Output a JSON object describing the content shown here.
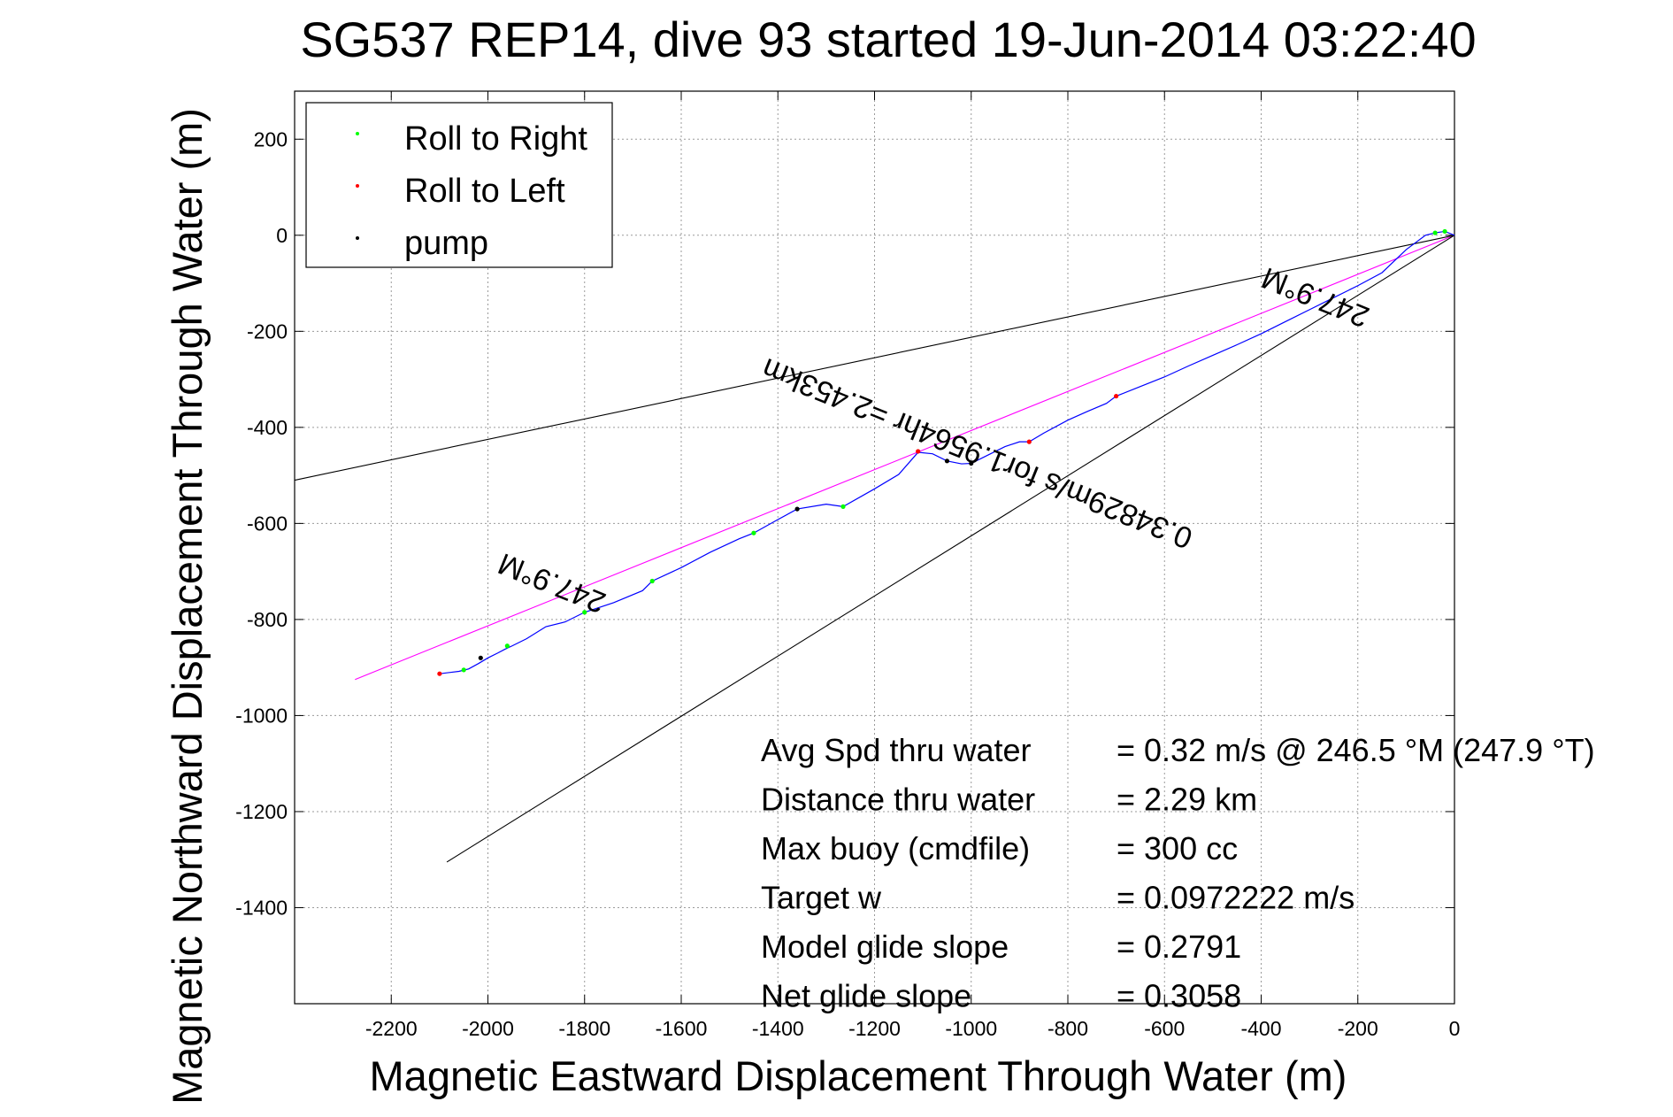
{
  "chart_data": {
    "type": "line",
    "title": "SG537 REP14, dive 93 started 19-Jun-2014 03:22:40",
    "xlabel": "Magnetic Eastward Displacement Through Water (m)",
    "ylabel": "Magnetic Northward Displacement Through Water (m)",
    "xlim": [
      -2400,
      0
    ],
    "ylim": [
      -1600,
      300
    ],
    "xticks": [
      -2200,
      -2000,
      -1800,
      -1600,
      -1400,
      -1200,
      -1000,
      -800,
      -600,
      -400,
      -200,
      0
    ],
    "yticks": [
      200,
      0,
      -200,
      -400,
      -600,
      -800,
      -1000,
      -1200,
      -1400
    ],
    "grid": true,
    "legend": {
      "position": "top-left",
      "entries": [
        {
          "label": "Roll to Right",
          "color": "#00ff00"
        },
        {
          "label": "Roll to Left",
          "color": "#ff0000"
        },
        {
          "label": "pump",
          "color": "#000000"
        }
      ]
    },
    "series": [
      {
        "name": "Roll to Right",
        "color": "#00ff00",
        "x": [
          -2050,
          -1960,
          -1800,
          -1660,
          -1450,
          -1265,
          -40,
          -20
        ],
        "y": [
          -905,
          -855,
          -785,
          -720,
          -620,
          -565,
          5,
          8
        ]
      },
      {
        "name": "Roll to Left",
        "color": "#ff0000",
        "x": [
          -2100,
          -1110,
          -880,
          -700
        ],
        "y": [
          -913,
          -450,
          -430,
          -335
        ]
      },
      {
        "name": "pump",
        "color": "#000000",
        "x": [
          -2015,
          -1360,
          -1050,
          -1000
        ],
        "y": [
          -880,
          -570,
          -470,
          -475
        ]
      }
    ],
    "track": {
      "color": "#0000ff",
      "x": [
        -2100,
        -2060,
        -2040,
        -2020,
        -2000,
        -1980,
        -1965,
        -1950,
        -1920,
        -1880,
        -1840,
        -1800,
        -1740,
        -1680,
        -1660,
        -1600,
        -1540,
        -1480,
        -1450,
        -1400,
        -1360,
        -1300,
        -1265,
        -1200,
        -1150,
        -1110,
        -1080,
        -1050,
        -1020,
        -1000,
        -960,
        -930,
        -900,
        -880,
        -850,
        -800,
        -760,
        -720,
        -700,
        -650,
        -600,
        -550,
        -500,
        -450,
        -400,
        -350,
        -300,
        -250,
        -200,
        -150,
        -100,
        -60,
        -40,
        -20,
        0
      ],
      "y": [
        -913,
        -908,
        -903,
        -892,
        -880,
        -870,
        -862,
        -855,
        -840,
        -815,
        -805,
        -785,
        -765,
        -740,
        -720,
        -692,
        -660,
        -632,
        -620,
        -592,
        -570,
        -560,
        -565,
        -528,
        -498,
        -452,
        -455,
        -470,
        -476,
        -475,
        -455,
        -440,
        -430,
        -430,
        -412,
        -385,
        -367,
        -350,
        -335,
        -315,
        -295,
        -272,
        -250,
        -228,
        -205,
        -180,
        -155,
        -130,
        -105,
        -78,
        -30,
        0,
        5,
        8,
        0
      ]
    },
    "reference_lines": [
      {
        "color": "#ff00ff",
        "x": [
          -2275,
          0
        ],
        "y": [
          -925,
          0
        ]
      },
      {
        "color": "#000000",
        "x": [
          -2400,
          0
        ],
        "y": [
          -510,
          0
        ]
      },
      {
        "color": "#000000",
        "x": [
          -2085,
          0
        ],
        "y": [
          -1305,
          0
        ]
      }
    ],
    "annotations": [
      {
        "text": "247.9°M",
        "x": -1860,
        "y": -705,
        "rotation_deg": 202
      },
      {
        "text": "0.34829m/s for1.9564hr =2.453km",
        "x": -980,
        "y": -435,
        "rotation_deg": 202
      },
      {
        "text": "247.9°M",
        "x": -280,
        "y": -110,
        "rotation_deg": 202
      }
    ],
    "stats": [
      {
        "label": "Avg Spd thru water",
        "value": "=  0.32 m/s @ 246.5 °M (247.9 °T)"
      },
      {
        "label": "Distance thru water",
        "value": "=  2.29 km"
      },
      {
        "label": "Max buoy (cmdfile)",
        "value": "= 300 cc"
      },
      {
        "label": "Target w",
        "value": "= 0.0972222 m/s"
      },
      {
        "label": "Model glide slope",
        "value": "= 0.2791"
      },
      {
        "label": "Net glide slope",
        "value": "= 0.3058"
      }
    ]
  }
}
